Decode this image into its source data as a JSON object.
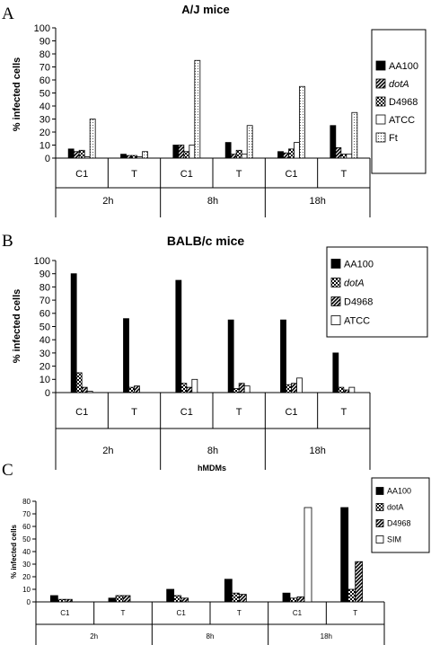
{
  "chart_data": [
    {
      "panel": "A",
      "type": "bar",
      "title": "A/J mice",
      "ylabel": "% infected cells",
      "ylim": [
        0,
        100
      ],
      "yticks": [
        0,
        10,
        20,
        30,
        40,
        50,
        60,
        70,
        80,
        90,
        100
      ],
      "categories": [
        "C1",
        "T",
        "C1",
        "T",
        "C1",
        "T"
      ],
      "groups": [
        "2h",
        "8h",
        "18h"
      ],
      "legend": "right",
      "series": [
        {
          "name": "AA100",
          "italic": false,
          "pattern": "solid",
          "values": [
            7,
            3,
            10,
            12,
            5,
            25
          ]
        },
        {
          "name": "dotA",
          "italic": true,
          "pattern": "diagonal",
          "values": [
            5,
            2,
            10,
            3,
            4,
            8
          ]
        },
        {
          "name": "D4968",
          "italic": false,
          "pattern": "checker",
          "values": [
            6,
            2,
            5,
            6,
            7,
            3
          ]
        },
        {
          "name": "ATCC",
          "italic": false,
          "pattern": "white",
          "values": [
            1,
            1,
            10,
            3,
            12,
            3
          ]
        },
        {
          "name": "Ft",
          "italic": false,
          "pattern": "dots",
          "values": [
            30,
            5,
            75,
            25,
            55,
            35
          ]
        }
      ]
    },
    {
      "panel": "B",
      "type": "bar",
      "title": "BALB/c mice",
      "ylabel": "% infected cells",
      "ylim": [
        0,
        100
      ],
      "yticks": [
        0,
        10,
        20,
        30,
        40,
        50,
        60,
        70,
        80,
        90,
        100
      ],
      "categories": [
        "C1",
        "T",
        "C1",
        "T",
        "C1",
        "T"
      ],
      "groups": [
        "2h",
        "8h",
        "18h"
      ],
      "legend": "right",
      "series": [
        {
          "name": "AA100",
          "italic": false,
          "pattern": "solid",
          "values": [
            90,
            56,
            85,
            55,
            55,
            30
          ]
        },
        {
          "name": "dotA",
          "italic": true,
          "pattern": "checker",
          "values": [
            15,
            4,
            7,
            3,
            6,
            4
          ]
        },
        {
          "name": "D4968",
          "italic": false,
          "pattern": "diagonal",
          "values": [
            4,
            5,
            4,
            7,
            7,
            2
          ]
        },
        {
          "name": "ATCC",
          "italic": false,
          "pattern": "white",
          "values": [
            1,
            0,
            10,
            5,
            11,
            4
          ]
        }
      ]
    },
    {
      "panel": "C",
      "type": "bar",
      "title": "hMDMs",
      "ylabel": "% infected cells",
      "ylim": [
        0,
        80
      ],
      "yticks": [
        0,
        10,
        20,
        30,
        40,
        50,
        60,
        70,
        80
      ],
      "categories": [
        "C1",
        "T",
        "C1",
        "T",
        "C1",
        "T"
      ],
      "groups": [
        "2h",
        "8h",
        "18h"
      ],
      "legend": "right",
      "series": [
        {
          "name": "AA100",
          "italic": false,
          "pattern": "solid",
          "values": [
            5,
            3,
            10,
            18,
            7,
            75
          ]
        },
        {
          "name": "dotA",
          "italic": false,
          "pattern": "checker",
          "values": [
            2,
            5,
            5,
            7,
            3,
            10
          ]
        },
        {
          "name": "D4968",
          "italic": false,
          "pattern": "diagonal",
          "values": [
            2,
            5,
            3,
            6,
            4,
            32
          ]
        },
        {
          "name": "SIM",
          "italic": false,
          "pattern": "white",
          "values": [
            0,
            0,
            0,
            0,
            75,
            0
          ]
        }
      ]
    }
  ]
}
